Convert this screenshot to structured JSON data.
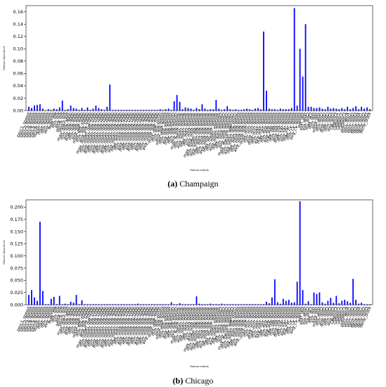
{
  "chart_data": [
    {
      "type": "bar",
      "panel_caption_label": "(a)",
      "panel_caption_text": "Champaign",
      "xlabel": "Feature Indices",
      "ylabel": "Feature Importance",
      "ylim": [
        0,
        0.17
      ],
      "yticks": [
        "0.00",
        "0.02",
        "0.04",
        "0.06",
        "0.08",
        "0.10",
        "0.12",
        "0.14",
        "0.16"
      ],
      "ytick_values": [
        0,
        0.02,
        0.04,
        0.06,
        0.08,
        0.1,
        0.12,
        0.14,
        0.16
      ],
      "bar_color": "#0000ff",
      "values": [
        0.006,
        0.004,
        0.008,
        0.009,
        0.01,
        0.003,
        0,
        0.002,
        0.001,
        0.003,
        0.002,
        0.005,
        0.016,
        0.001,
        0.002,
        0.008,
        0.004,
        0.003,
        0.001,
        0.004,
        0.001,
        0.005,
        0.001,
        0.003,
        0.008,
        0.004,
        0.002,
        0.001,
        0.006,
        0.042,
        0.001,
        0.001,
        0.001,
        0.001,
        0.001,
        0.001,
        0.001,
        0.001,
        0.001,
        0.001,
        0.001,
        0.001,
        0.001,
        0.001,
        0.001,
        0.001,
        0.001,
        0.002,
        0.001,
        0.002,
        0.003,
        0.001,
        0.015,
        0.025,
        0.014,
        0.002,
        0.005,
        0.004,
        0.003,
        0.001,
        0.004,
        0.002,
        0.01,
        0.003,
        0.001,
        0.002,
        0.002,
        0.017,
        0.003,
        0.001,
        0.002,
        0.007,
        0.002,
        0.001,
        0.002,
        0.001,
        0.001,
        0.002,
        0.003,
        0.002,
        0.001,
        0.003,
        0.004,
        0.002,
        0.128,
        0.032,
        0.003,
        0.002,
        0.002,
        0.001,
        0.003,
        0.002,
        0.002,
        0.002,
        0.004,
        0.166,
        0.008,
        0.1,
        0.055,
        0.14,
        0.006,
        0.006,
        0.004,
        0.004,
        0.005,
        0.003,
        0.002,
        0.006,
        0.003,
        0.004,
        0.003,
        0.002,
        0.004,
        0.002,
        0.006,
        0.002,
        0.004,
        0.007,
        0.002,
        0.006,
        0.003,
        0.005,
        0.002
      ],
      "tick_labels": [
        "perc1_speed",
        "perc2_speed",
        "perc3_speed",
        "perc4_speed",
        "perc5_speed",
        "perc6_speed",
        "mean_speed",
        "max_speed",
        "min_speed",
        "avg_speed",
        "max_diff",
        "min_diff",
        "avg_diff",
        "perc1_diff",
        "perc2_diff",
        "max_diff_3000",
        "min_diff_3000",
        "avg_diff_3000",
        "max_diff_5000",
        "min_diff_5000",
        "avg_diff_5000",
        "max_diff_10000",
        "min_diff_10000",
        "avg_diff_10000",
        "max_mean_diff_1000",
        "min_mean_diff_1000",
        "avg_mean_diff_1000",
        "max_mean_diff_2000",
        "min_mean_diff_2000",
        "avg_mean_diff_2000",
        "max_mean_diff_3000",
        "min_mean_diff_3000",
        "avg_mean_diff_3000",
        "max_mean_diff_5000",
        "min_mean_diff_5000",
        "avg_mean_diff_5000",
        "max_med_diff_1000",
        "min_med_diff_1000",
        "avg_med_diff_1000",
        "max_med_diff_2000",
        "min_med_diff_2000",
        "avg_med_diff_2000",
        "max_med_diff_3000",
        "min_med_diff_3000",
        "avg_med_diff_3000",
        "max_med_diff_5000",
        "min_med_diff_5000",
        "avg_med_diff_5000",
        "max_diff_speed",
        "min_diff_speed",
        "avg_diff_speed",
        "max_diff_speed2",
        "min_diff_speed2",
        "avg_diff_speed2",
        "max_diff_speeds",
        "min_diff_speeds",
        "avg_diff_speeds",
        "max_mean_speeds",
        "min_mean_speeds",
        "avg_mean_speeds",
        "max_med_speeds",
        "min_med_speeds",
        "avg_med_speeds",
        "max_mean_diff_speeds",
        "min_mean_diff_speeds",
        "avg_mean_diff_speeds",
        "max_med_diff_speeds",
        "min_med_diff_speeds",
        "avg_med_diff_speeds",
        "max_mean_speeds2",
        "min_mean_speeds2",
        "avg_mean_speeds2",
        "max_med_speeds2",
        "min_med_speeds2",
        "avg_med_speeds2",
        "max_mean_diff_speed",
        "min_mean_diff_speed",
        "avg_mean_diff_speed",
        "max_med_diff_speed",
        "min_med_diff_speed",
        "avg_med_diff_speed",
        "max_min_speed",
        "min_min_speed",
        "avg_min_speed",
        "max_max_speed",
        "min_max_speed",
        "avg_max_speed",
        "max_avg_speed",
        "min_avg_speed",
        "avg_avg_speed",
        "max_std_speed",
        "min_std_speed",
        "avg_std_speed",
        "max_var_speed",
        "min_var_speed",
        "avg_var_speed",
        "max_cv_speed",
        "min_cv_speed",
        "avg_cv_speed",
        "ext_dist",
        "ext_dist2",
        "ext_dist3",
        "max_dist",
        "min_dist",
        "avg_dist",
        "max_dist2",
        "min_dist2",
        "avg_dist2",
        "max_dist3",
        "min_dist3",
        "avg_dist3",
        "categor1",
        "categor2",
        "categor3",
        "categor4",
        "perc_dist1",
        "perc_dist2",
        "perc_dist3",
        "perc_dist4",
        "dens_dist1",
        "dens_dist2",
        "dens_dist3",
        "dens_dist4"
      ]
    },
    {
      "type": "bar",
      "panel_caption_label": "(b)",
      "panel_caption_text": "Chicago",
      "xlabel": "Feature Indices",
      "ylabel": "Feature Importance",
      "ylim": [
        0,
        0.215
      ],
      "yticks": [
        "0.000",
        "0.025",
        "0.050",
        "0.075",
        "0.100",
        "0.125",
        "0.150",
        "0.175",
        "0.200"
      ],
      "ytick_values": [
        0,
        0.025,
        0.05,
        0.075,
        0.1,
        0.125,
        0.15,
        0.175,
        0.2
      ],
      "bar_color": "#0000ff",
      "values": [
        0.02,
        0.03,
        0.015,
        0.008,
        0.17,
        0.028,
        0.001,
        0.001,
        0.012,
        0.016,
        0.001,
        0.018,
        0.001,
        0.002,
        0.001,
        0.006,
        0.004,
        0.02,
        0.001,
        0.009,
        0.001,
        0.001,
        0.001,
        0.001,
        0.001,
        0.001,
        0.001,
        0.001,
        0.001,
        0.001,
        0.001,
        0.001,
        0.001,
        0.001,
        0.001,
        0.001,
        0.001,
        0.001,
        0.001,
        0.002,
        0.001,
        0.001,
        0.001,
        0.001,
        0.001,
        0.001,
        0.001,
        0.001,
        0.001,
        0.001,
        0.001,
        0.005,
        0.001,
        0.001,
        0.003,
        0.001,
        0.001,
        0.001,
        0.001,
        0.001,
        0.017,
        0.002,
        0.001,
        0.001,
        0.001,
        0.002,
        0.001,
        0.001,
        0.001,
        0.002,
        0.001,
        0.001,
        0.001,
        0.001,
        0.001,
        0.001,
        0.001,
        0.001,
        0.001,
        0.001,
        0.001,
        0.001,
        0.001,
        0.001,
        0.001,
        0.006,
        0.003,
        0.015,
        0.052,
        0.005,
        0.002,
        0.012,
        0.008,
        0.01,
        0.004,
        0.005,
        0.047,
        0.212,
        0.03,
        0.002,
        0.007,
        0.001,
        0.025,
        0.022,
        0.025,
        0.005,
        0.002,
        0.008,
        0.014,
        0.004,
        0.018,
        0.003,
        0.008,
        0.01,
        0.007,
        0.004,
        0.053,
        0.01,
        0.002,
        0.004,
        0.001,
        0.001,
        0.001
      ],
      "tick_labels": [
        "perc1_speed",
        "perc2_speed",
        "perc3_speed",
        "perc4_speed",
        "perc5_speed",
        "perc6_speed",
        "mean_speed",
        "max_speed",
        "min_speed",
        "avg_speed",
        "max_diff",
        "min_diff",
        "avg_diff",
        "perc1_diff",
        "perc2_diff",
        "max_diff_3000",
        "min_diff_3000",
        "avg_diff_3000",
        "max_diff_5000",
        "min_diff_5000",
        "avg_diff_5000",
        "max_diff_10000",
        "min_diff_10000",
        "avg_diff_10000",
        "max_mean_diff_1000",
        "min_mean_diff_1000",
        "avg_mean_diff_1000",
        "max_mean_diff_2000",
        "min_mean_diff_2000",
        "avg_mean_diff_2000",
        "max_mean_diff_3000",
        "min_mean_diff_3000",
        "avg_mean_diff_3000",
        "max_mean_diff_5000",
        "min_mean_diff_5000",
        "avg_mean_diff_5000",
        "max_med_diff_1000",
        "min_med_diff_1000",
        "avg_med_diff_1000",
        "max_med_diff_2000",
        "min_med_diff_2000",
        "avg_med_diff_2000",
        "max_med_diff_3000",
        "min_med_diff_3000",
        "avg_med_diff_3000",
        "max_med_diff_5000",
        "min_med_diff_5000",
        "avg_med_diff_5000",
        "max_diff_speed",
        "min_diff_speed",
        "avg_diff_speed",
        "max_diff_speed2",
        "min_diff_speed2",
        "avg_diff_speed2",
        "max_diff_speeds",
        "min_diff_speeds",
        "avg_diff_speeds",
        "max_mean_speeds",
        "min_mean_speeds",
        "avg_mean_speeds",
        "max_med_speeds",
        "min_med_speeds",
        "avg_med_speeds",
        "max_mean_diff_speeds",
        "min_mean_diff_speeds",
        "avg_mean_diff_speeds",
        "max_med_diff_speeds",
        "min_med_diff_speeds",
        "avg_med_diff_speeds",
        "max_mean_speeds2",
        "min_mean_speeds2",
        "avg_mean_speeds2",
        "max_med_speeds2",
        "min_med_speeds2",
        "avg_med_speeds2",
        "max_mean_diff_speed",
        "min_mean_diff_speed",
        "avg_mean_diff_speed",
        "max_med_diff_speed",
        "min_med_diff_speed",
        "avg_med_diff_speed",
        "max_min_speed",
        "min_min_speed",
        "avg_min_speed",
        "max_max_speed",
        "min_max_speed",
        "avg_max_speed",
        "max_avg_speed",
        "min_avg_speed",
        "avg_avg_speed",
        "max_std_speed",
        "min_std_speed",
        "avg_std_speed",
        "max_var_speed",
        "min_var_speed",
        "avg_var_speed",
        "max_cv_speed",
        "min_cv_speed",
        "avg_cv_speed",
        "ext_dist",
        "ext_dist2",
        "ext_dist3",
        "max_dist",
        "min_dist",
        "avg_dist",
        "max_dist2",
        "min_dist2",
        "avg_dist2",
        "max_dist3",
        "min_dist3",
        "avg_dist3",
        "categor1",
        "categor2",
        "categor3",
        "categor4",
        "perc_dist1",
        "perc_dist2",
        "perc_dist3",
        "perc_dist4",
        "dens_dist1",
        "dens_dist2",
        "dens_dist3",
        "dens_dist4"
      ]
    }
  ]
}
